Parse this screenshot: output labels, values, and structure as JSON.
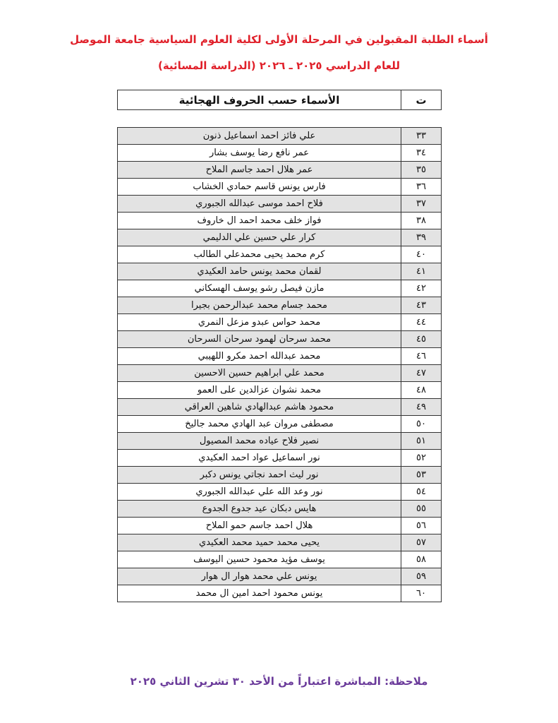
{
  "header": {
    "title_line1": "أسماء الطلبة المقبولين في المرحلة الأولى لكلية العلوم السياسية جامعة الموصل",
    "title_line2": "للعام الدراسي ٢٠٢٥ ـ ٢٠٢٦ (الدراسة المسائية)"
  },
  "table": {
    "columns": [
      "ت",
      "الأسماء حسب الحروف الهجائية"
    ],
    "rows": [
      [
        "٣٣",
        "علي فائز احمد اسماعيل ذنون"
      ],
      [
        "٣٤",
        "عمر نافع رضا يوسف بشار"
      ],
      [
        "٣٥",
        "عمر هلال احمد جاسم الملاح"
      ],
      [
        "٣٦",
        "فارس يونس قاسم حمادي الخشاب"
      ],
      [
        "٣٧",
        "فلاح احمد موسى عبدالله الجبوري"
      ],
      [
        "٣٨",
        "فواز خلف محمد احمد ال خاروف"
      ],
      [
        "٣٩",
        "كرار علي حسين علي الدليمي"
      ],
      [
        "٤٠",
        "كرم محمد يحيى محمدعلي الطالب"
      ],
      [
        "٤١",
        "لقمان محمد يونس حامد العكيدي"
      ],
      [
        "٤٢",
        "مازن فيصل رشو يوسف الهسكاني"
      ],
      [
        "٤٣",
        "محمد جسام محمد عبدالرحمن بجيرا"
      ],
      [
        "٤٤",
        "محمد حواس عبدو مزعل النمري"
      ],
      [
        "٤٥",
        "محمد سرحان لهمود سرحان السرحان"
      ],
      [
        "٤٦",
        "محمد عبدالله احمد مكرو اللهيبي"
      ],
      [
        "٤٧",
        "محمد علي ابراهيم حسين الاحسين"
      ],
      [
        "٤٨",
        "محمد نشوان عزالدين على العمو"
      ],
      [
        "٤٩",
        "محمود  هاشم عبدالهادي شاهين  العراقي"
      ],
      [
        "٥٠",
        "مصطفى مروان عبد الهادي محمد جاليخ"
      ],
      [
        "٥١",
        "نصير فلاح عياده محمد المصيول"
      ],
      [
        "٥٢",
        "نور اسماعيل عواد احمد العكيدي"
      ],
      [
        "٥٣",
        "نور ليث احمد نجاتي يونس دكبر"
      ],
      [
        "٥٤",
        "نور وعد الله علي عبدالله الجبوري"
      ],
      [
        "٥٥",
        "هايس  دبكان عيد جدوع الجدوع"
      ],
      [
        "٥٦",
        "هلال احمد جاسم حمو الملاح"
      ],
      [
        "٥٧",
        "يحيى محمد حميد محمد العكيدي"
      ],
      [
        "٥٨",
        "يوسف  مؤيد محمود حسين  اليوسف"
      ],
      [
        "٥٩",
        "يونس  علي محمد هوار ال هوار"
      ],
      [
        "٦٠",
        "يونس محمود احمد امين ال محمد"
      ]
    ]
  },
  "footer": {
    "note": "ملاحظة: المباشرة اعتباراً من الأحد ٣٠ تشرين الثاني ٢٠٢٥"
  },
  "colors": {
    "title": "#e0202a",
    "note": "#6a3a9a",
    "row_shade": "#e3e3e3"
  }
}
